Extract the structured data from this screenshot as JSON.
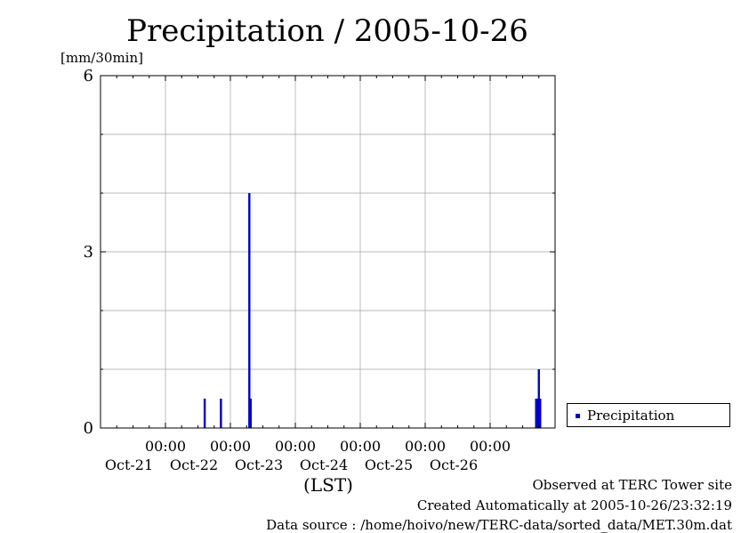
{
  "colors": {
    "series": "#0000c8",
    "grid": "#a0a0a0",
    "axis": "#000000"
  },
  "chart_data": {
    "type": "bar",
    "title": "Precipitation / 2005-10-26",
    "ylabel": "[mm/30min]",
    "xlabel": "(LST)",
    "ylim": [
      0,
      6
    ],
    "yticks": [
      "0",
      "3",
      "6"
    ],
    "grid": true,
    "legend": "right",
    "xlim": [
      "2005-10-20 00:00",
      "2005-10-27 00:00"
    ],
    "x_ticks": [
      {
        "time": "00:00",
        "date": "Oct-21"
      },
      {
        "time": "00:00",
        "date": "Oct-22"
      },
      {
        "time": "00:00",
        "date": "Oct-23"
      },
      {
        "time": "00:00",
        "date": "Oct-24"
      },
      {
        "time": "00:00",
        "date": "Oct-25"
      },
      {
        "time": "00:00",
        "date": "Oct-26"
      }
    ],
    "series": [
      {
        "name": "Precipitation",
        "points": [
          {
            "t": "2005-10-21 14:30",
            "v": 0.5
          },
          {
            "t": "2005-10-21 20:30",
            "v": 0.5
          },
          {
            "t": "2005-10-22 07:00",
            "v": 4.0
          },
          {
            "t": "2005-10-22 07:30",
            "v": 0.5
          },
          {
            "t": "2005-10-26 17:00",
            "v": 0.5
          },
          {
            "t": "2005-10-26 17:30",
            "v": 0.5
          },
          {
            "t": "2005-10-26 18:00",
            "v": 1.0
          },
          {
            "t": "2005-10-26 18:30",
            "v": 0.5
          }
        ]
      }
    ]
  },
  "footer": {
    "line1": "Observed at TERC Tower site",
    "line2": "Created Automatically at 2005-10-26/23:32:19",
    "line3": "Data source : /home/hoivo/new/TERC-data/sorted_data/MET.30m.dat"
  }
}
